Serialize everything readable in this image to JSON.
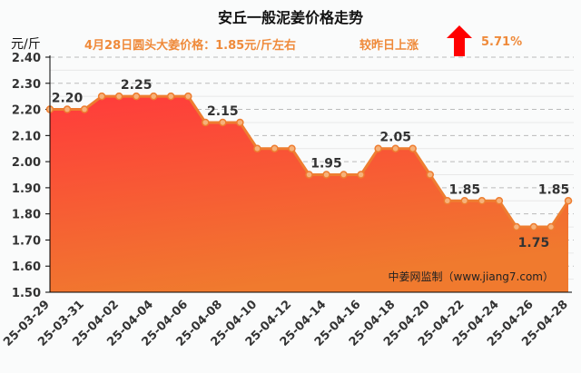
{
  "chart_data": {
    "type": "area",
    "title": "安丘一般泥姜价格走势",
    "ylabel": "元/斤",
    "subtitle": "4月28日圆头大姜价格：1.85元/斤左右",
    "change_label": "较昨日上涨",
    "change_value": "5.71%",
    "watermark": "中姜网监制（www.jiang7.com）",
    "ylim": [
      1.5,
      2.4
    ],
    "yticks": [
      "1.50",
      "1.60",
      "1.70",
      "1.80",
      "1.90",
      "2.00",
      "2.10",
      "2.20",
      "2.30",
      "2.40"
    ],
    "xtick_labels": [
      "25-03-29",
      "25-03-31",
      "25-04-02",
      "25-04-04",
      "25-04-06",
      "25-04-08",
      "25-04-10",
      "25-04-12",
      "25-04-14",
      "25-04-16",
      "25-04-18",
      "25-04-20",
      "25-04-22",
      "25-04-24",
      "25-04-26",
      "25-04-28"
    ],
    "values": [
      2.2,
      2.2,
      2.2,
      2.25,
      2.25,
      2.25,
      2.25,
      2.25,
      2.25,
      2.15,
      2.15,
      2.15,
      2.05,
      2.05,
      2.05,
      1.95,
      1.95,
      1.95,
      1.95,
      2.05,
      2.05,
      2.05,
      1.95,
      1.85,
      1.85,
      1.85,
      1.85,
      1.75,
      1.75,
      1.75,
      1.85
    ],
    "data_labels": [
      {
        "index": 1,
        "text": "2.20"
      },
      {
        "index": 5,
        "text": "2.25"
      },
      {
        "index": 10,
        "text": "2.15"
      },
      {
        "index": 16,
        "text": "1.95"
      },
      {
        "index": 20,
        "text": "2.05"
      },
      {
        "index": 24,
        "text": "1.85"
      },
      {
        "index": 28,
        "text": "1.75",
        "below": true
      },
      {
        "index": 30,
        "text": "1.85"
      }
    ],
    "grid": true,
    "colors": {
      "line": "#ee7d30",
      "fill_top": "#ff3b3b",
      "fill_bottom": "#f07a2e",
      "arrow": "#ff0000",
      "subtitle": "#ef8a3a"
    }
  }
}
